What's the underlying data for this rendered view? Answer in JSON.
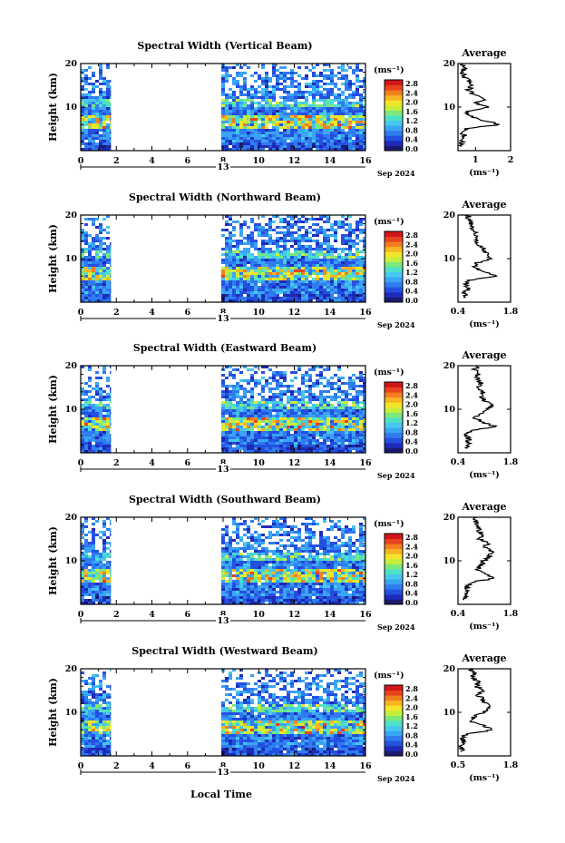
{
  "figure": {
    "units_label": "(ms⁻¹)",
    "date_day": "13",
    "date_month": "Sep 2024",
    "x_label": "Local Time",
    "y_label": "Height (km)",
    "avg_title": "Average",
    "avg_xlabel": "(ms⁻¹)"
  },
  "chart_data": [
    {
      "type": "heatmap",
      "title": "Spectral Width (Vertical Beam)",
      "xlim": [
        0,
        16
      ],
      "ylim": [
        0,
        20
      ],
      "x_ticks": [
        "0",
        "2",
        "4",
        "6",
        "8",
        "10",
        "12",
        "14",
        "16"
      ],
      "y_ticks": [
        "10",
        "20"
      ],
      "data_segments": [
        [
          0,
          1.7
        ],
        [
          7.9,
          16
        ]
      ],
      "colorbar": {
        "ticks": [
          "2.8",
          "2.4",
          "2.0",
          "1.6",
          "1.2",
          "0.8",
          "0.4",
          "0.0"
        ]
      },
      "average": {
        "xlim": [
          0.5,
          2.0
        ],
        "x_ticks": [
          "1",
          "2"
        ],
        "y_ticks": [
          "10",
          "20"
        ],
        "profile": [
          [
            0.6,
            1
          ],
          [
            0.6,
            2
          ],
          [
            0.7,
            3
          ],
          [
            0.65,
            4
          ],
          [
            0.7,
            5
          ],
          [
            1.7,
            6
          ],
          [
            1.2,
            7
          ],
          [
            0.8,
            8
          ],
          [
            0.7,
            9
          ],
          [
            1.4,
            10
          ],
          [
            1.0,
            11
          ],
          [
            1.3,
            12
          ],
          [
            0.9,
            13
          ],
          [
            0.8,
            14
          ],
          [
            0.9,
            15
          ],
          [
            0.8,
            16
          ],
          [
            0.7,
            17
          ],
          [
            0.6,
            18
          ],
          [
            0.7,
            19
          ],
          [
            0.6,
            20
          ]
        ]
      }
    },
    {
      "type": "heatmap",
      "title": "Spectral Width (Northward Beam)",
      "xlim": [
        0,
        16
      ],
      "ylim": [
        0,
        20
      ],
      "x_ticks": [
        "0",
        "2",
        "4",
        "6",
        "8",
        "10",
        "12",
        "14",
        "16"
      ],
      "y_ticks": [
        "10",
        "20"
      ],
      "data_segments": [
        [
          0,
          1.7
        ],
        [
          7.9,
          16
        ]
      ],
      "colorbar": {
        "ticks": [
          "2.8",
          "2.4",
          "2.0",
          "1.6",
          "1.2",
          "0.8",
          "0.4",
          "0.0"
        ]
      },
      "average": {
        "xlim": [
          0.4,
          1.8
        ],
        "x_ticks": [
          "0.4",
          "1.8"
        ],
        "y_ticks": [
          "10",
          "20"
        ],
        "profile": [
          [
            0.6,
            1
          ],
          [
            0.55,
            2
          ],
          [
            0.7,
            3
          ],
          [
            0.6,
            4
          ],
          [
            0.65,
            5
          ],
          [
            1.5,
            6
          ],
          [
            1.1,
            7
          ],
          [
            0.8,
            8
          ],
          [
            0.9,
            9
          ],
          [
            1.3,
            10
          ],
          [
            1.2,
            11
          ],
          [
            1.1,
            12
          ],
          [
            1.0,
            13
          ],
          [
            0.9,
            14
          ],
          [
            0.95,
            15
          ],
          [
            0.85,
            16
          ],
          [
            0.8,
            17
          ],
          [
            0.75,
            18
          ],
          [
            0.7,
            19
          ],
          [
            0.65,
            20
          ]
        ]
      }
    },
    {
      "type": "heatmap",
      "title": "Spectral Width (Eastward Beam)",
      "xlim": [
        0,
        16
      ],
      "ylim": [
        0,
        20
      ],
      "x_ticks": [
        "0",
        "2",
        "4",
        "6",
        "8",
        "10",
        "12",
        "14",
        "16"
      ],
      "y_ticks": [
        "10",
        "20"
      ],
      "data_segments": [
        [
          0,
          1.7
        ],
        [
          7.9,
          16
        ]
      ],
      "colorbar": {
        "ticks": [
          "2.8",
          "2.4",
          "2.0",
          "1.6",
          "1.2",
          "0.8",
          "0.4",
          "0.0"
        ]
      },
      "average": {
        "xlim": [
          0.4,
          1.8
        ],
        "x_ticks": [
          "0.4",
          "1.8"
        ],
        "y_ticks": [
          "10",
          "20"
        ],
        "profile": [
          [
            0.6,
            1
          ],
          [
            0.65,
            2
          ],
          [
            0.7,
            3
          ],
          [
            0.6,
            4
          ],
          [
            0.7,
            5
          ],
          [
            1.4,
            6
          ],
          [
            1.1,
            7
          ],
          [
            0.8,
            8
          ],
          [
            1.0,
            9
          ],
          [
            1.2,
            10
          ],
          [
            1.3,
            11
          ],
          [
            1.1,
            12
          ],
          [
            1.0,
            13
          ],
          [
            1.05,
            14
          ],
          [
            0.95,
            15
          ],
          [
            1.0,
            16
          ],
          [
            0.9,
            17
          ],
          [
            0.95,
            18
          ],
          [
            0.85,
            19
          ],
          [
            0.9,
            20
          ]
        ]
      }
    },
    {
      "type": "heatmap",
      "title": "Spectral Width (Southward Beam)",
      "xlim": [
        0,
        16
      ],
      "ylim": [
        0,
        20
      ],
      "x_ticks": [
        "0",
        "2",
        "4",
        "6",
        "8",
        "10",
        "12",
        "14",
        "16"
      ],
      "y_ticks": [
        "10",
        "20"
      ],
      "data_segments": [
        [
          0,
          1.7
        ],
        [
          7.9,
          16
        ]
      ],
      "colorbar": {
        "ticks": [
          "2.8",
          "2.4",
          "2.0",
          "1.6",
          "1.2",
          "0.8",
          "0.4",
          "0.0"
        ]
      },
      "average": {
        "xlim": [
          0.4,
          1.8
        ],
        "x_ticks": [
          "0.4",
          "1.8"
        ],
        "y_ticks": [
          "10",
          "20"
        ],
        "profile": [
          [
            0.6,
            1
          ],
          [
            0.6,
            2
          ],
          [
            0.7,
            3
          ],
          [
            0.65,
            4
          ],
          [
            0.7,
            5
          ],
          [
            1.4,
            6
          ],
          [
            1.1,
            7
          ],
          [
            0.9,
            8
          ],
          [
            1.0,
            9
          ],
          [
            1.1,
            10
          ],
          [
            1.25,
            11
          ],
          [
            1.3,
            12
          ],
          [
            1.1,
            13
          ],
          [
            1.2,
            14
          ],
          [
            1.0,
            15
          ],
          [
            1.05,
            16
          ],
          [
            0.95,
            17
          ],
          [
            0.9,
            18
          ],
          [
            0.85,
            19
          ],
          [
            0.9,
            20
          ]
        ]
      }
    },
    {
      "type": "heatmap",
      "title": "Spectral Width (Westward Beam)",
      "xlim": [
        0,
        16
      ],
      "ylim": [
        0,
        20
      ],
      "x_ticks": [
        "0",
        "2",
        "4",
        "6",
        "8",
        "10",
        "12",
        "14",
        "16"
      ],
      "y_ticks": [
        "10",
        "20"
      ],
      "data_segments": [
        [
          0,
          1.7
        ],
        [
          7.9,
          16
        ]
      ],
      "colorbar": {
        "ticks": [
          "2.8",
          "2.4",
          "2.0",
          "1.6",
          "1.2",
          "0.8",
          "0.4",
          "0.0"
        ]
      },
      "average": {
        "xlim": [
          0.5,
          1.8
        ],
        "x_ticks": [
          "0.5",
          "1.8"
        ],
        "y_ticks": [
          "10",
          "20"
        ],
        "profile": [
          [
            0.6,
            1
          ],
          [
            0.55,
            2
          ],
          [
            0.65,
            3
          ],
          [
            0.6,
            4
          ],
          [
            0.7,
            5
          ],
          [
            1.4,
            6
          ],
          [
            1.1,
            7
          ],
          [
            0.8,
            8
          ],
          [
            0.9,
            9
          ],
          [
            1.1,
            10
          ],
          [
            1.3,
            11
          ],
          [
            1.2,
            12
          ],
          [
            1.1,
            13
          ],
          [
            1.0,
            14
          ],
          [
            1.15,
            15
          ],
          [
            0.95,
            16
          ],
          [
            1.0,
            17
          ],
          [
            0.85,
            18
          ],
          [
            0.9,
            19
          ],
          [
            0.8,
            20
          ]
        ]
      }
    }
  ]
}
